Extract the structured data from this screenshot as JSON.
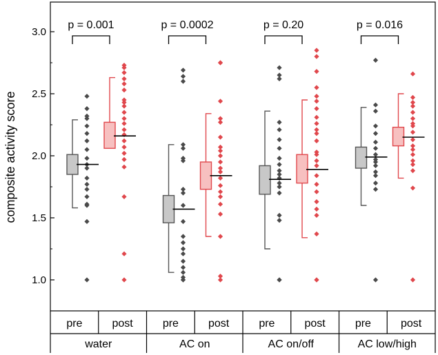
{
  "chart_data": {
    "type": "box-scatter",
    "ylabel": "composite activity score",
    "ylim": [
      0.8,
      3.25
    ],
    "yticks": [
      1.0,
      1.5,
      2.0,
      2.5,
      3.0
    ],
    "ytick_labels": [
      "1.0",
      "1.5",
      "2.0",
      "2.5",
      "3.0"
    ],
    "colors": {
      "pre_box": "#c8c8c8",
      "pre_line": "#555555",
      "pre_point": "#4a4a4a",
      "post_box": "#f7c0c0",
      "post_line": "#e0474c",
      "post_point": "#e0474c"
    },
    "groups": [
      {
        "name": "water",
        "pvalue": "p = 0.001",
        "pre": {
          "label": "pre",
          "whisker": [
            1.58,
            2.29
          ],
          "box": [
            1.85,
            2.01
          ],
          "mean": 1.93,
          "points": [
            2.48,
            2.38,
            2.32,
            2.3,
            2.24,
            2.18,
            2.12,
            2.05,
            1.98,
            1.93,
            1.9,
            1.82,
            1.77,
            1.73,
            1.67,
            1.61,
            1.6,
            1.47,
            1.0
          ]
        },
        "post": {
          "label": "post",
          "whisker": [
            2.1,
            2.63
          ],
          "box": [
            2.06,
            2.27
          ],
          "mean": 2.16,
          "points": [
            2.73,
            2.71,
            2.67,
            2.62,
            2.58,
            2.53,
            2.45,
            2.43,
            2.4,
            2.35,
            2.3,
            2.26,
            2.21,
            2.17,
            2.12,
            2.07,
            2.02,
            1.97,
            1.91,
            1.67,
            1.21,
            1.0
          ]
        }
      },
      {
        "name": "AC on",
        "pvalue": "p = 0.0002",
        "pre": {
          "label": "pre",
          "whisker": [
            1.06,
            2.09
          ],
          "box": [
            1.46,
            1.68
          ],
          "mean": 1.57,
          "points": [
            2.69,
            2.64,
            2.6,
            2.09,
            2.06,
            1.98,
            1.96,
            1.73,
            1.7,
            1.6,
            1.47,
            1.35,
            1.3,
            1.25,
            1.21,
            1.15,
            1.1,
            1.06,
            1.02,
            1.0,
            1.0
          ]
        },
        "post": {
          "label": "post",
          "whisker": [
            1.35,
            2.34
          ],
          "box": [
            1.73,
            1.95
          ],
          "mean": 1.84,
          "points": [
            2.75,
            2.75,
            2.44,
            2.3,
            2.27,
            2.15,
            2.07,
            2.04,
            2.0,
            1.95,
            1.9,
            1.87,
            1.82,
            1.76,
            1.71,
            1.67,
            1.61,
            1.53,
            1.35,
            1.03,
            1.0
          ]
        }
      },
      {
        "name": "AC on/off",
        "pvalue": "p = 0.20",
        "pre": {
          "label": "pre",
          "whisker": [
            1.25,
            2.36
          ],
          "box": [
            1.69,
            1.92
          ],
          "mean": 1.81,
          "points": [
            2.71,
            2.65,
            2.62,
            2.27,
            2.21,
            2.13,
            2.06,
            1.98,
            1.93,
            1.88,
            1.85,
            1.82,
            1.78,
            1.75,
            1.7,
            1.52,
            1.48,
            1.0,
            1.0
          ]
        },
        "post": {
          "label": "post",
          "whisker": [
            1.34,
            2.45
          ],
          "box": [
            1.78,
            2.01
          ],
          "mean": 1.89,
          "points": [
            2.85,
            2.8,
            2.68,
            2.55,
            2.48,
            2.44,
            2.38,
            2.31,
            2.26,
            2.21,
            2.18,
            2.12,
            2.03,
            2.01,
            1.96,
            1.92,
            1.84,
            1.77,
            1.71,
            1.63,
            1.57,
            1.52,
            1.37,
            1.0,
            1.0
          ]
        }
      },
      {
        "name": "AC low/high",
        "pvalue": "p = 0.016",
        "pre": {
          "label": "pre",
          "whisker": [
            1.6,
            2.39
          ],
          "box": [
            1.9,
            2.07
          ],
          "mean": 1.99,
          "points": [
            2.77,
            2.41,
            2.36,
            2.24,
            2.18,
            2.11,
            2.06,
            2.01,
            1.97,
            1.95,
            1.92,
            1.87,
            1.84,
            1.78,
            1.73,
            1.0
          ]
        },
        "post": {
          "label": "post",
          "whisker": [
            1.82,
            2.5
          ],
          "box": [
            2.08,
            2.23
          ],
          "mean": 2.15,
          "points": [
            2.66,
            2.47,
            2.43,
            2.4,
            2.35,
            2.3,
            2.26,
            2.24,
            2.19,
            2.13,
            2.08,
            2.05,
            2.01,
            1.96,
            1.93,
            1.88,
            1.74,
            1.0
          ]
        }
      }
    ]
  }
}
